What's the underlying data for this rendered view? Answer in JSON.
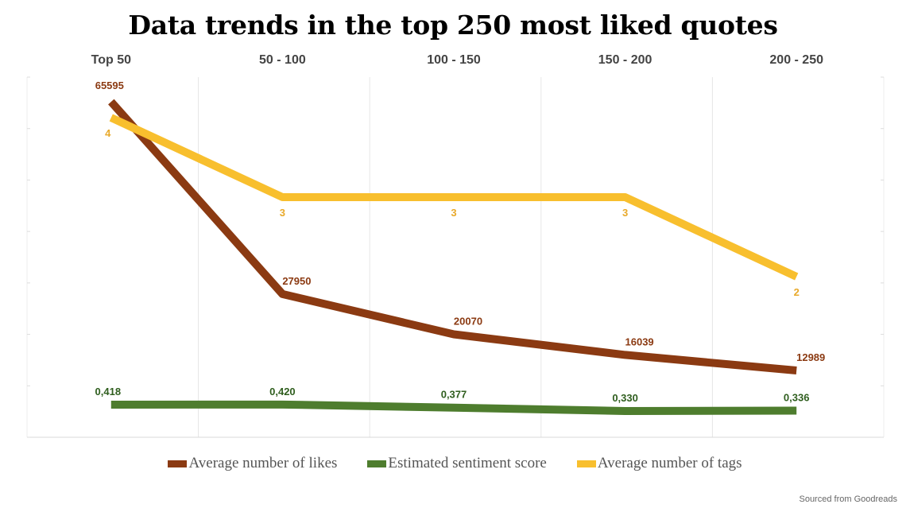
{
  "chart_data": {
    "type": "line",
    "title": "Data trends in the top 250 most liked quotes",
    "categories": [
      "Top 50",
      "50 - 100",
      "100 - 150",
      "150 - 200",
      "200 - 250"
    ],
    "series": [
      {
        "name": "Average number of likes",
        "color": "#8B3A12",
        "values": [
          65595,
          27950,
          20070,
          16039,
          12989
        ],
        "labels": [
          "65595",
          "27950",
          "20070",
          "16039",
          "12989"
        ]
      },
      {
        "name": "Estimated sentiment score",
        "color": "#4E7D2E",
        "values": [
          0.418,
          0.42,
          0.377,
          0.33,
          0.336
        ],
        "labels": [
          "0,418",
          "0,420",
          "0,377",
          "0,330",
          "0,336"
        ]
      },
      {
        "name": "Average number of tags",
        "color": "#F8BF2E",
        "values": [
          4,
          3,
          3,
          3,
          2
        ],
        "labels": [
          "4",
          "3",
          "3",
          "3",
          "2"
        ]
      }
    ],
    "label_colors": {
      "likes": "#8B3A12",
      "sentiment": "#2F5E1E",
      "tags": "#E8A92A"
    },
    "grid": true,
    "legend_position": "bottom"
  },
  "source_text": "Sourced from Goodreads"
}
